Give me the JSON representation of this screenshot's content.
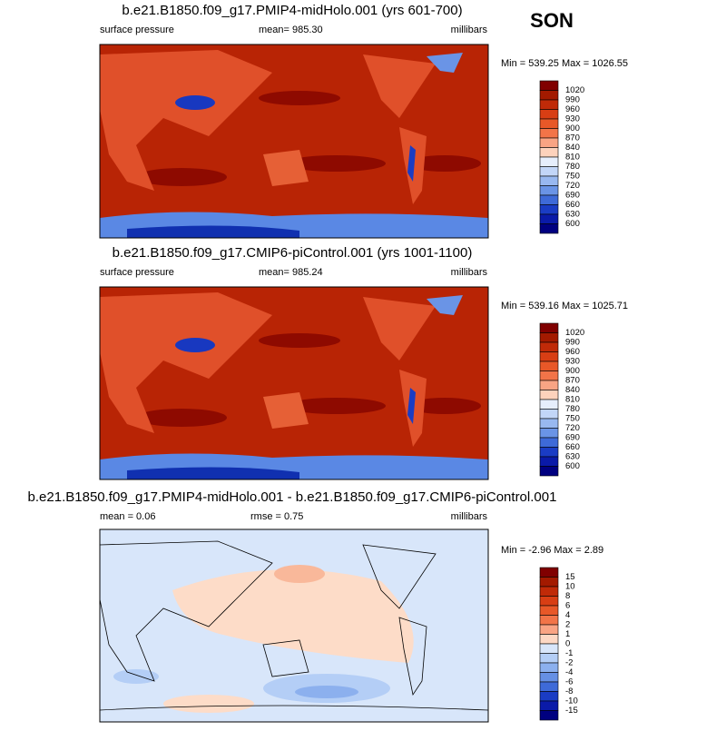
{
  "season": "SON",
  "panels": [
    {
      "title": "b.e21.B1850.f09_g17.PMIP4-midHolo.001 (yrs 601-700)",
      "left": "surface pressure",
      "center": "mean= 985.30",
      "right": "millibars",
      "minmax": "Min = 539.25 Max = 1026.55",
      "colorbar": {
        "labels": [
          1020,
          990,
          960,
          930,
          900,
          870,
          840,
          810,
          780,
          750,
          720,
          690,
          660,
          630,
          600
        ],
        "colors": [
          "#800000",
          "#a31a00",
          "#c02a08",
          "#d83e14",
          "#e85828",
          "#f27448",
          "#f9a484",
          "#fdd2bc",
          "#e6eefc",
          "#c2d6f8",
          "#98b8f0",
          "#6a94e6",
          "#3e6ad8",
          "#1a3cc4",
          "#0a1aa8",
          "#000080"
        ]
      }
    },
    {
      "title": "b.e21.B1850.f09_g17.CMIP6-piControl.001 (yrs 1001-1100)",
      "left": "surface pressure",
      "center": "mean= 985.24",
      "right": "millibars",
      "minmax": "Min = 539.16 Max = 1025.71",
      "colorbar": {
        "labels": [
          1020,
          990,
          960,
          930,
          900,
          870,
          840,
          810,
          780,
          750,
          720,
          690,
          660,
          630,
          600
        ],
        "colors": [
          "#800000",
          "#a31a00",
          "#c02a08",
          "#d83e14",
          "#e85828",
          "#f27448",
          "#f9a484",
          "#fdd2bc",
          "#e6eefc",
          "#c2d6f8",
          "#98b8f0",
          "#6a94e6",
          "#3e6ad8",
          "#1a3cc4",
          "#0a1aa8",
          "#000080"
        ]
      }
    },
    {
      "title": "b.e21.B1850.f09_g17.PMIP4-midHolo.001 - b.e21.B1850.f09_g17.CMIP6-piControl.001",
      "left": "mean =  0.06",
      "center": "rmse =  0.75",
      "right": "millibars",
      "minmax": "Min =  -2.96 Max =   2.89",
      "colorbar": {
        "labels": [
          15,
          10,
          8,
          6,
          4,
          2,
          1,
          0,
          -1,
          -2,
          -4,
          -6,
          -8,
          -10,
          -15
        ],
        "colors": [
          "#800000",
          "#a31a00",
          "#c02a08",
          "#d83e14",
          "#e85828",
          "#f27448",
          "#f9a484",
          "#fdd8c4",
          "#d8e6fa",
          "#b4cef6",
          "#8cb0ee",
          "#6690e4",
          "#3e6ad8",
          "#1a3cc4",
          "#0a1aa8",
          "#000080"
        ]
      }
    }
  ]
}
